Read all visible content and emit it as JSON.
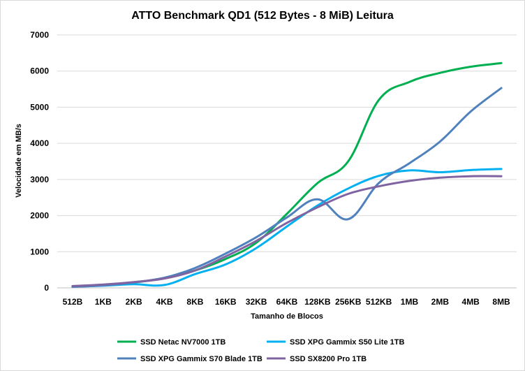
{
  "chart_data": {
    "type": "line",
    "title": "ATTO Benchmark QD1 (512 Bytes - 8 MiB) Leitura",
    "xlabel": "Tamanho de Blocos",
    "ylabel": "Velocidade em MB/s",
    "ylim": [
      0,
      7000
    ],
    "yticks": [
      0,
      1000,
      2000,
      3000,
      4000,
      5000,
      6000,
      7000
    ],
    "grid": true,
    "legend_position": "bottom",
    "categories": [
      "512B",
      "1KB",
      "2KB",
      "4KB",
      "8KB",
      "16KB",
      "32KB",
      "64KB",
      "128KB",
      "256KB",
      "512KB",
      "1MB",
      "2MB",
      "4MB",
      "8MB"
    ],
    "series": [
      {
        "name": "SSD Netac NV7000 1TB",
        "color": "#00b050",
        "values": [
          40,
          80,
          150,
          270,
          480,
          800,
          1250,
          2050,
          2900,
          3500,
          5200,
          5700,
          5950,
          6120,
          6220
        ]
      },
      {
        "name": "SSD XPG Gammix S50 Lite 1TB",
        "color": "#00b0f0",
        "values": [
          30,
          60,
          100,
          80,
          380,
          650,
          1100,
          1700,
          2280,
          2750,
          3100,
          3250,
          3200,
          3260,
          3290
        ]
      },
      {
        "name": "SSD XPG Gammix S70 Blade 1TB",
        "color": "#4f81bd",
        "values": [
          30,
          70,
          150,
          280,
          550,
          950,
          1400,
          1950,
          2450,
          1900,
          2900,
          3450,
          4050,
          4880,
          5530
        ]
      },
      {
        "name": "SSD SX8200 Pro 1TB",
        "color": "#8064a2",
        "values": [
          50,
          90,
          160,
          260,
          480,
          870,
          1300,
          1800,
          2230,
          2600,
          2810,
          2960,
          3050,
          3090,
          3090
        ]
      }
    ]
  }
}
